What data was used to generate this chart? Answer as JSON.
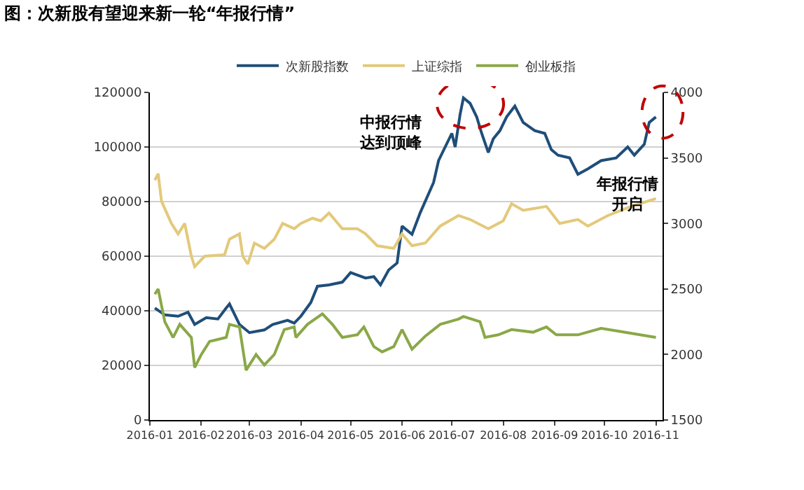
{
  "chart_data": {
    "type": "line",
    "title": "图：次新股有望迎来新一轮“年报行情”",
    "xlim": [
      "2016-01-01",
      "2016-11-05"
    ],
    "xticks": [
      "2016-01",
      "2016-02",
      "2016-03",
      "2016-04",
      "2016-05",
      "2016-06",
      "2016-07",
      "2016-08",
      "2016-09",
      "2016-10",
      "2016-11"
    ],
    "ylim": [
      0,
      120000
    ],
    "yticks": [
      0,
      20000,
      40000,
      60000,
      80000,
      100000,
      120000
    ],
    "y2lim": [
      1500,
      4000
    ],
    "y2ticks": [
      1500,
      2000,
      2500,
      3000,
      3500,
      4000
    ],
    "grid": "y",
    "legend": "top",
    "marker": "none",
    "line_style": "solid",
    "series": [
      {
        "name": "次新股指数",
        "color": "#1f4e79",
        "x": [
          "2016-01-04",
          "2016-01-10",
          "2016-01-18",
          "2016-01-24",
          "2016-01-28",
          "2016-02-04",
          "2016-02-11",
          "2016-02-16",
          "2016-02-18",
          "2016-02-24",
          "2016-03-01",
          "2016-03-10",
          "2016-03-15",
          "2016-03-24",
          "2016-03-28",
          "2016-04-01",
          "2016-04-07",
          "2016-04-11",
          "2016-04-18",
          "2016-04-26",
          "2016-05-01",
          "2016-05-10",
          "2016-05-15",
          "2016-05-19",
          "2016-05-24",
          "2016-05-29",
          "2016-06-01",
          "2016-06-07",
          "2016-06-12",
          "2016-06-20",
          "2016-06-23",
          "2016-07-01",
          "2016-07-03",
          "2016-07-06",
          "2016-07-08",
          "2016-07-12",
          "2016-07-16",
          "2016-07-19",
          "2016-07-23",
          "2016-07-26",
          "2016-07-30",
          "2016-08-03",
          "2016-08-08",
          "2016-08-13",
          "2016-08-20",
          "2016-08-26",
          "2016-08-30",
          "2016-09-03",
          "2016-09-10",
          "2016-09-15",
          "2016-09-21",
          "2016-09-29",
          "2016-10-08",
          "2016-10-15",
          "2016-10-19",
          "2016-10-25",
          "2016-10-28",
          "2016-11-01"
        ],
        "values": [
          41000,
          38500,
          38000,
          39500,
          35000,
          37500,
          37000,
          41000,
          42500,
          35000,
          32000,
          33000,
          35000,
          36500,
          35500,
          38000,
          43000,
          49000,
          49500,
          50500,
          54000,
          52000,
          52500,
          49500,
          55000,
          57500,
          71000,
          68000,
          76000,
          87000,
          95000,
          105000,
          100000,
          112000,
          118000,
          116000,
          111000,
          105000,
          98000,
          103000,
          106000,
          111000,
          115000,
          109000,
          106000,
          105000,
          99000,
          97000,
          96000,
          90000,
          92000,
          95000,
          96000,
          100000,
          97000,
          101000,
          109000,
          111000
        ]
      },
      {
        "name": "上证综指",
        "color": "#e3c97a",
        "axis": "y2",
        "x": [
          "2016-01-04",
          "2016-01-06",
          "2016-01-08",
          "2016-01-14",
          "2016-01-18",
          "2016-01-22",
          "2016-01-26",
          "2016-01-28",
          "2016-02-03",
          "2016-02-15",
          "2016-02-18",
          "2016-02-24",
          "2016-02-26",
          "2016-02-29",
          "2016-03-04",
          "2016-03-10",
          "2016-03-16",
          "2016-03-21",
          "2016-03-28",
          "2016-04-01",
          "2016-04-08",
          "2016-04-13",
          "2016-04-18",
          "2016-04-26",
          "2016-05-05",
          "2016-05-10",
          "2016-05-17",
          "2016-05-27",
          "2016-06-01",
          "2016-06-07",
          "2016-06-15",
          "2016-06-24",
          "2016-07-05",
          "2016-07-12",
          "2016-07-23",
          "2016-08-01",
          "2016-08-06",
          "2016-08-13",
          "2016-08-27",
          "2016-09-04",
          "2016-09-15",
          "2016-09-21",
          "2016-10-03",
          "2016-10-17",
          "2016-11-01"
        ],
        "values": [
          3330,
          3380,
          3170,
          3000,
          2920,
          3000,
          2750,
          2670,
          2750,
          2760,
          2880,
          2920,
          2750,
          2690,
          2850,
          2810,
          2880,
          3000,
          2960,
          3000,
          3040,
          3020,
          3080,
          2960,
          2960,
          2920,
          2830,
          2810,
          2920,
          2830,
          2850,
          2980,
          3060,
          3030,
          2960,
          3020,
          3150,
          3100,
          3130,
          3000,
          3030,
          2980,
          3060,
          3130,
          3190
        ]
      },
      {
        "name": "创业板指",
        "color": "#8aa848",
        "axis": "y2",
        "x": [
          "2016-01-04",
          "2016-01-06",
          "2016-01-10",
          "2016-01-15",
          "2016-01-19",
          "2016-01-26",
          "2016-01-28",
          "2016-02-01",
          "2016-02-06",
          "2016-02-16",
          "2016-02-18",
          "2016-02-24",
          "2016-02-28",
          "2016-03-05",
          "2016-03-10",
          "2016-03-16",
          "2016-03-22",
          "2016-03-28",
          "2016-03-29",
          "2016-04-05",
          "2016-04-14",
          "2016-04-20",
          "2016-04-26",
          "2016-05-05",
          "2016-05-09",
          "2016-05-15",
          "2016-05-20",
          "2016-05-27",
          "2016-06-01",
          "2016-06-07",
          "2016-06-15",
          "2016-06-24",
          "2016-07-05",
          "2016-07-08",
          "2016-07-18",
          "2016-07-21",
          "2016-07-29",
          "2016-08-06",
          "2016-08-19",
          "2016-08-27",
          "2016-09-02",
          "2016-09-15",
          "2016-09-29",
          "2016-10-13",
          "2016-11-01"
        ],
        "values": [
          2460,
          2500,
          2250,
          2130,
          2230,
          2130,
          1900,
          2000,
          2100,
          2130,
          2230,
          2210,
          1880,
          2000,
          1920,
          2000,
          2190,
          2210,
          2130,
          2230,
          2310,
          2230,
          2130,
          2150,
          2210,
          2060,
          2020,
          2060,
          2190,
          2040,
          2140,
          2230,
          2270,
          2290,
          2250,
          2130,
          2150,
          2190,
          2170,
          2210,
          2150,
          2150,
          2200,
          2170,
          2130
        ]
      }
    ],
    "annotations": [
      "中报行情达到顶峰",
      "年报行情开启"
    ]
  }
}
